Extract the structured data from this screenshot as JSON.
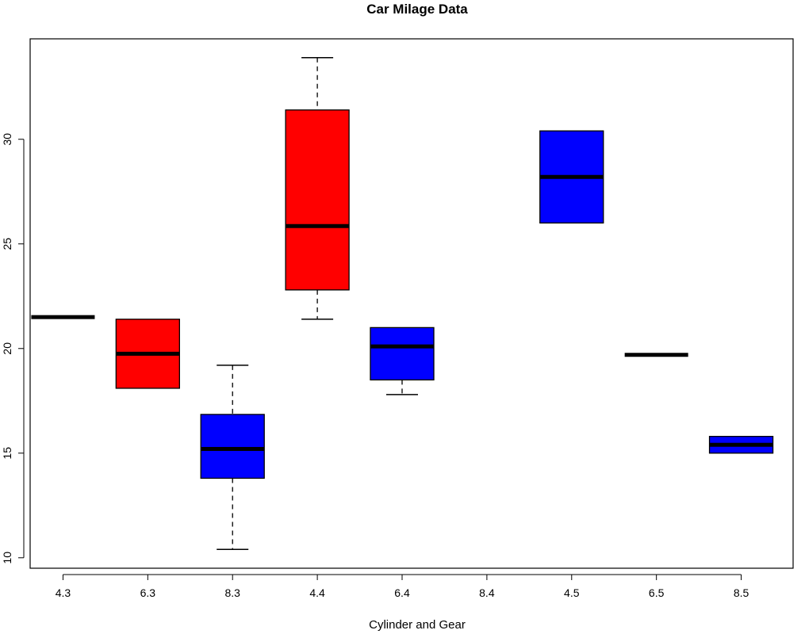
{
  "chart_data": {
    "type": "boxplot",
    "title": "Car Milage Data",
    "xlabel": "Cylinder and Gear",
    "ylabel": "",
    "ylim": [
      9.5,
      34.8
    ],
    "yticks": [
      10,
      15,
      20,
      25,
      30
    ],
    "categories": [
      "4.3",
      "6.3",
      "8.3",
      "4.4",
      "6.4",
      "8.4",
      "4.5",
      "6.5",
      "8.5"
    ],
    "boxes": [
      {
        "category": "4.3",
        "fill": "#ff0000",
        "whisker_low": 21.5,
        "q1": 21.5,
        "median": 21.5,
        "q3": 21.5,
        "whisker_high": 21.5
      },
      {
        "category": "6.3",
        "fill": "#ff0000",
        "whisker_low": 18.1,
        "q1": 18.1,
        "median": 19.75,
        "q3": 21.4,
        "whisker_high": 21.4
      },
      {
        "category": "8.3",
        "fill": "#0000ff",
        "whisker_low": 10.4,
        "q1": 13.8,
        "median": 15.2,
        "q3": 16.85,
        "whisker_high": 19.2
      },
      {
        "category": "4.4",
        "fill": "#ff0000",
        "whisker_low": 21.4,
        "q1": 22.8,
        "median": 25.85,
        "q3": 31.4,
        "whisker_high": 33.9
      },
      {
        "category": "6.4",
        "fill": "#0000ff",
        "whisker_low": 17.8,
        "q1": 18.5,
        "median": 20.1,
        "q3": 21.0,
        "whisker_high": 21.0
      },
      {
        "category": "8.4",
        "fill": "#ff0000",
        "empty": true
      },
      {
        "category": "4.5",
        "fill": "#0000ff",
        "whisker_low": 26.0,
        "q1": 26.0,
        "median": 28.2,
        "q3": 30.4,
        "whisker_high": 30.4
      },
      {
        "category": "6.5",
        "fill": "#ff0000",
        "whisker_low": 19.7,
        "q1": 19.7,
        "median": 19.7,
        "q3": 19.7,
        "whisker_high": 19.7
      },
      {
        "category": "8.5",
        "fill": "#0000ff",
        "whisker_low": 15.0,
        "q1": 15.0,
        "median": 15.4,
        "q3": 15.8,
        "whisker_high": 15.8
      }
    ],
    "grid": false,
    "legend": "none"
  }
}
